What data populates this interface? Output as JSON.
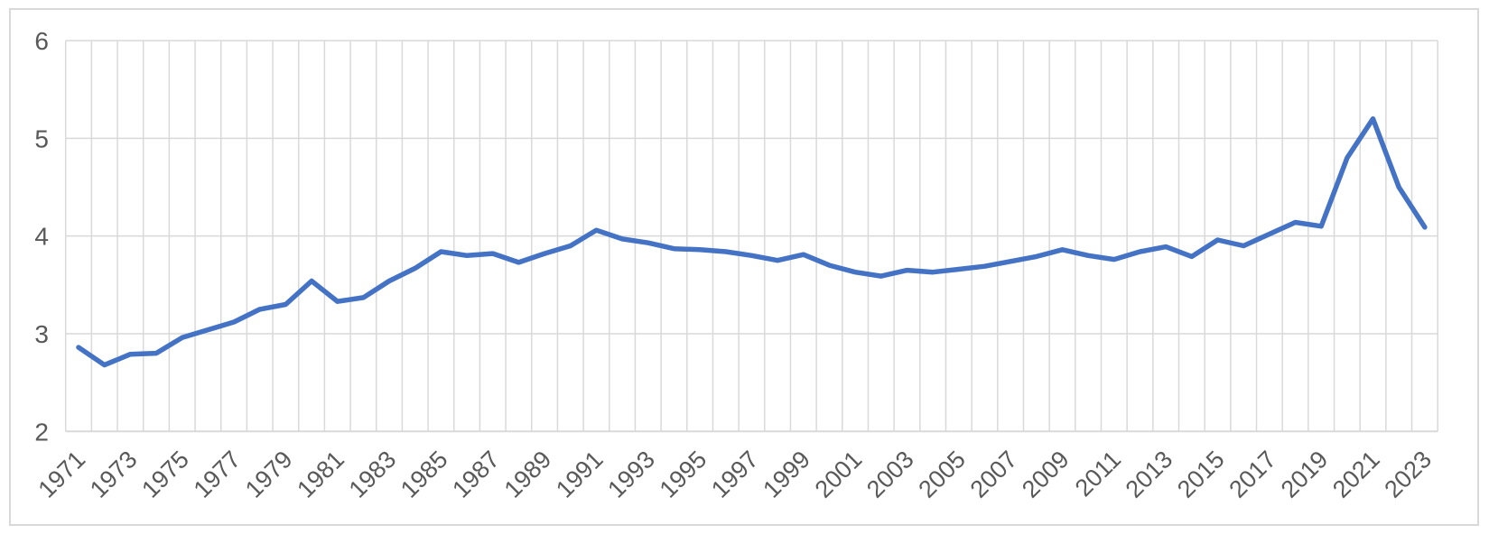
{
  "chart": {
    "frame_border_color": "#d9d9d9",
    "background_color": "#ffffff",
    "plot_area_border": "none",
    "legend": "none",
    "title": ""
  },
  "chart_data": {
    "type": "line",
    "title": "",
    "xlabel": "",
    "ylabel": "",
    "x": [
      1971,
      1972,
      1973,
      1974,
      1975,
      1976,
      1977,
      1978,
      1979,
      1980,
      1981,
      1982,
      1983,
      1984,
      1985,
      1986,
      1987,
      1988,
      1989,
      1990,
      1991,
      1992,
      1993,
      1994,
      1995,
      1996,
      1997,
      1998,
      1999,
      2000,
      2001,
      2002,
      2003,
      2004,
      2005,
      2006,
      2007,
      2008,
      2009,
      2010,
      2011,
      2012,
      2013,
      2014,
      2015,
      2016,
      2017,
      2018,
      2019,
      2020,
      2021,
      2022,
      2023
    ],
    "values": [
      2.86,
      2.68,
      2.79,
      2.8,
      2.96,
      3.04,
      3.12,
      3.25,
      3.3,
      3.54,
      3.33,
      3.37,
      3.54,
      3.67,
      3.84,
      3.8,
      3.82,
      3.73,
      3.82,
      3.9,
      4.06,
      3.97,
      3.93,
      3.87,
      3.86,
      3.84,
      3.8,
      3.75,
      3.81,
      3.7,
      3.63,
      3.59,
      3.65,
      3.63,
      3.66,
      3.69,
      3.74,
      3.79,
      3.86,
      3.8,
      3.76,
      3.84,
      3.89,
      3.79,
      3.96,
      3.9,
      4.02,
      4.14,
      4.1,
      4.8,
      5.2,
      4.5,
      4.09
    ],
    "x_tick_labels": [
      "1971",
      "1973",
      "1975",
      "1977",
      "1979",
      "1981",
      "1983",
      "1985",
      "1987",
      "1989",
      "1991",
      "1993",
      "1995",
      "1997",
      "1999",
      "2001",
      "2003",
      "2005",
      "2007",
      "2009",
      "2011",
      "2013",
      "2015",
      "2017",
      "2019",
      "2021",
      "2023"
    ],
    "x_tick_step": 2,
    "x_tick_rotation_deg": 45,
    "y_ticks": [
      "2",
      "3",
      "4",
      "5",
      "6"
    ],
    "ylim": [
      2,
      6
    ],
    "grid": "both",
    "legend_position": "none",
    "line_color": "#4472C4",
    "line_width": 5.5,
    "gridline_color": "#d9d9d9",
    "axis_line_color": "#d9d9d9",
    "tick_label_color": "#595959"
  }
}
